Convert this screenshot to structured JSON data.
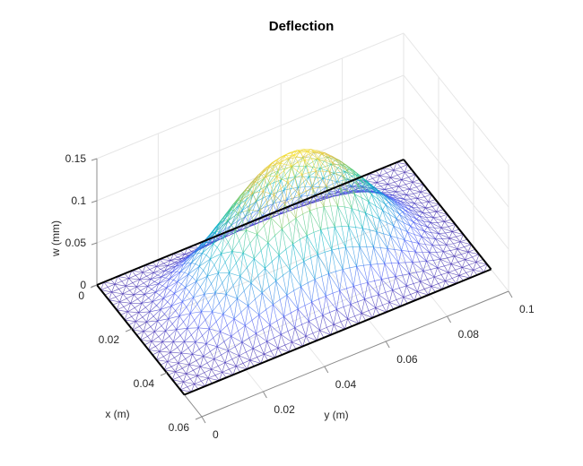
{
  "chart_data": {
    "type": "surface-mesh",
    "title": "Deflection",
    "xlabel": "x (m)",
    "ylabel": "y (m)",
    "zlabel": "w (mm)",
    "xlim": [
      0,
      0.06
    ],
    "ylim": [
      0,
      0.1
    ],
    "zlim": [
      0,
      0.15
    ],
    "xticks": [
      "0",
      "0.02",
      "0.04",
      "0.06"
    ],
    "yticks": [
      "0",
      "0.02",
      "0.04",
      "0.06",
      "0.08",
      "0.1"
    ],
    "zticks": [
      "0",
      "0.05",
      "0.1",
      "0.15"
    ],
    "plate": {
      "x": [
        0,
        0.05
      ],
      "y": [
        0,
        0.1
      ]
    },
    "max_deflection": 0.145,
    "colormap": "parula",
    "grid": true
  }
}
